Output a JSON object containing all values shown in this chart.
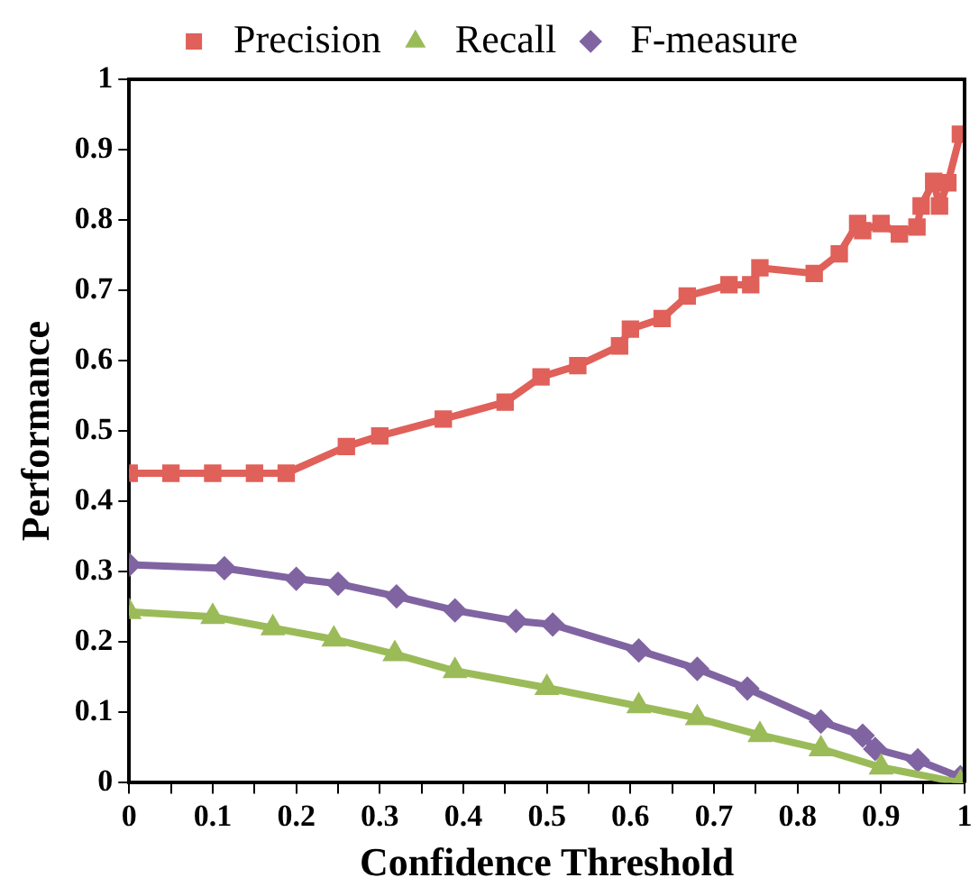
{
  "chart_data": {
    "type": "line",
    "xlabel": "Confidence Threshold",
    "ylabel": "Performance",
    "xlim": [
      0,
      1
    ],
    "ylim": [
      0,
      1
    ],
    "xticks": [
      0,
      {
        "value": 0.05,
        "label": null
      },
      0.1,
      {
        "value": 0.15,
        "label": null
      },
      0.2,
      {
        "value": 0.25,
        "label": null
      },
      0.3,
      {
        "value": 0.35,
        "label": null
      },
      0.4,
      {
        "value": 0.45,
        "label": null
      },
      0.5,
      {
        "value": 0.55,
        "label": null
      },
      0.6,
      {
        "value": 0.65,
        "label": null
      },
      0.7,
      {
        "value": 0.75,
        "label": null
      },
      0.8,
      {
        "value": 0.85,
        "label": null
      },
      0.9,
      {
        "value": 0.95,
        "label": null
      },
      1
    ],
    "yticks": [
      0,
      0.1,
      0.2,
      0.3,
      0.4,
      0.5,
      0.6,
      0.7,
      0.8,
      0.9,
      1
    ],
    "grid": false,
    "legend": "top",
    "series": [
      {
        "name": "Precision",
        "color": "#e0605a",
        "marker": "square",
        "x": [
          0,
          0.05,
          0.1,
          0.15,
          0.188,
          0.26,
          0.3,
          0.376,
          0.45,
          0.493,
          0.537,
          0.587,
          0.6,
          0.638,
          0.668,
          0.718,
          0.744,
          0.755,
          0.82,
          0.85,
          0.872,
          0.878,
          0.9,
          0.922,
          0.943,
          0.948,
          0.963,
          0.97,
          0.98,
          0.995
        ],
        "values": [
          0.44,
          0.44,
          0.44,
          0.44,
          0.44,
          0.478,
          0.493,
          0.517,
          0.541,
          0.577,
          0.593,
          0.621,
          0.645,
          0.66,
          0.692,
          0.708,
          0.708,
          0.732,
          0.724,
          0.752,
          0.795,
          0.785,
          0.795,
          0.78,
          0.79,
          0.82,
          0.855,
          0.82,
          0.853,
          0.922
        ]
      },
      {
        "name": "Recall",
        "color": "#9bbb59",
        "marker": "triangle",
        "x": [
          0,
          0.1,
          0.172,
          0.245,
          0.318,
          0.39,
          0.5,
          0.61,
          0.68,
          0.755,
          0.828,
          0.9,
          0.995
        ],
        "values": [
          0.243,
          0.236,
          0.22,
          0.204,
          0.183,
          0.159,
          0.135,
          0.109,
          0.092,
          0.068,
          0.048,
          0.022,
          0
        ]
      },
      {
        "name": "F-measure",
        "color": "#8064a2",
        "marker": "diamond",
        "x": [
          0,
          0.114,
          0.2,
          0.25,
          0.32,
          0.39,
          0.463,
          0.507,
          0.61,
          0.68,
          0.74,
          0.828,
          0.878,
          0.893,
          0.944,
          0.995
        ],
        "values": [
          0.31,
          0.305,
          0.29,
          0.283,
          0.265,
          0.245,
          0.23,
          0.225,
          0.188,
          0.162,
          0.134,
          0.087,
          0.067,
          0.048,
          0.032,
          0.008
        ]
      }
    ]
  }
}
